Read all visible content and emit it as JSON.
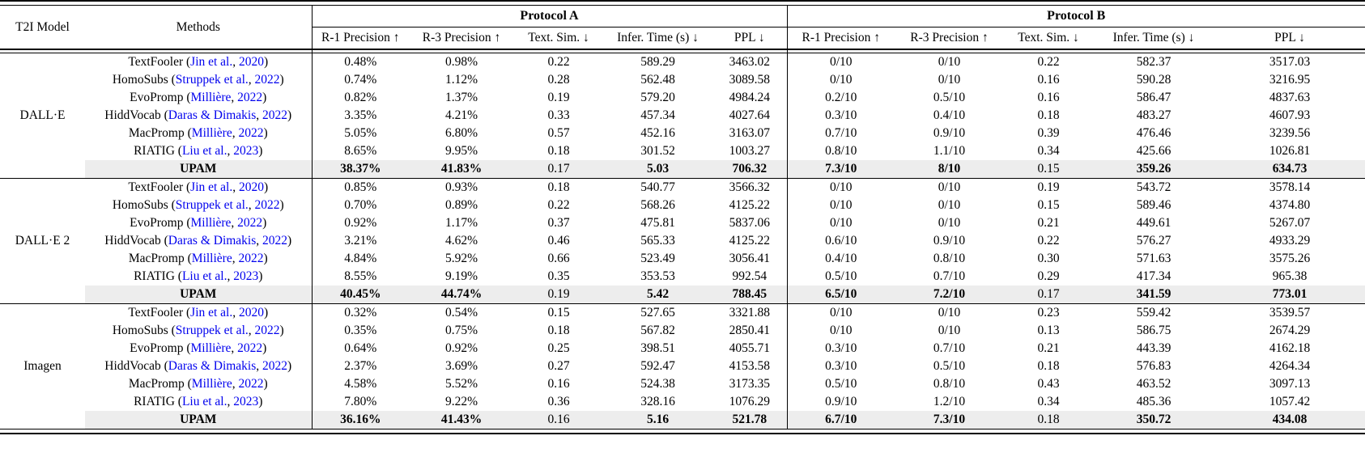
{
  "table": {
    "col_headers": {
      "t2i_model": "T2I Model",
      "methods": "Methods",
      "protocol_a": "Protocol A",
      "protocol_b": "Protocol B",
      "metrics": [
        "R-1 Precision ↑",
        "R-3 Precision ↑",
        "Text. Sim. ↓",
        "Infer. Time (s) ↓",
        "PPL ↓"
      ]
    },
    "styles": {
      "link_color": "#0000EE",
      "highlight_bg": "#ededed",
      "upam_plain_cols": [
        2,
        7
      ]
    },
    "groups": [
      {
        "model": "DALL·E",
        "rows": [
          {
            "method": {
              "name": "TextFooler",
              "cite": "Jin et al.",
              "year": "2020"
            },
            "highlight": false,
            "values": [
              "0.48%",
              "0.98%",
              "0.22",
              "589.29",
              "3463.02",
              "0/10",
              "0/10",
              "0.22",
              "582.37",
              "3517.03"
            ]
          },
          {
            "method": {
              "name": "HomoSubs",
              "cite": "Struppek et al.",
              "year": "2022"
            },
            "highlight": false,
            "values": [
              "0.74%",
              "1.12%",
              "0.28",
              "562.48",
              "3089.58",
              "0/10",
              "0/10",
              "0.16",
              "590.28",
              "3216.95"
            ]
          },
          {
            "method": {
              "name": "EvoPromp",
              "cite": "Millière",
              "year": "2022"
            },
            "highlight": false,
            "values": [
              "0.82%",
              "1.37%",
              "0.19",
              "579.20",
              "4984.24",
              "0.2/10",
              "0.5/10",
              "0.16",
              "586.47",
              "4837.63"
            ]
          },
          {
            "method": {
              "name": "HiddVocab",
              "cite": "Daras & Dimakis",
              "year": "2022"
            },
            "highlight": false,
            "values": [
              "3.35%",
              "4.21%",
              "0.33",
              "457.34",
              "4027.64",
              "0.3/10",
              "0.4/10",
              "0.18",
              "483.27",
              "4607.93"
            ]
          },
          {
            "method": {
              "name": "MacPromp",
              "cite": "Millière",
              "year": "2022"
            },
            "highlight": false,
            "values": [
              "5.05%",
              "6.80%",
              "0.57",
              "452.16",
              "3163.07",
              "0.7/10",
              "0.9/10",
              "0.39",
              "476.46",
              "3239.56"
            ]
          },
          {
            "method": {
              "name": "RIATIG",
              "cite": "Liu et al.",
              "year": "2023"
            },
            "highlight": false,
            "values": [
              "8.65%",
              "9.95%",
              "0.18",
              "301.52",
              "1003.27",
              "0.8/10",
              "1.1/10",
              "0.34",
              "425.66",
              "1026.81"
            ]
          },
          {
            "method": {
              "name": "UPAM"
            },
            "highlight": true,
            "values": [
              "38.37%",
              "41.83%",
              "0.17",
              "5.03",
              "706.32",
              "7.3/10",
              "8/10",
              "0.15",
              "359.26",
              "634.73"
            ]
          }
        ]
      },
      {
        "model": "DALL·E 2",
        "rows": [
          {
            "method": {
              "name": "TextFooler",
              "cite": "Jin et al.",
              "year": "2020"
            },
            "highlight": false,
            "values": [
              "0.85%",
              "0.93%",
              "0.18",
              "540.77",
              "3566.32",
              "0/10",
              "0/10",
              "0.19",
              "543.72",
              "3578.14"
            ]
          },
          {
            "method": {
              "name": "HomoSubs",
              "cite": "Struppek et al.",
              "year": "2022"
            },
            "highlight": false,
            "values": [
              "0.70%",
              "0.89%",
              "0.22",
              "568.26",
              "4125.22",
              "0/10",
              "0/10",
              "0.15",
              "589.46",
              "4374.80"
            ]
          },
          {
            "method": {
              "name": "EvoPromp",
              "cite": "Millière",
              "year": "2022"
            },
            "highlight": false,
            "values": [
              "0.92%",
              "1.17%",
              "0.37",
              "475.81",
              "5837.06",
              "0/10",
              "0/10",
              "0.21",
              "449.61",
              "5267.07"
            ]
          },
          {
            "method": {
              "name": "HiddVocab",
              "cite": "Daras & Dimakis",
              "year": "2022"
            },
            "highlight": false,
            "values": [
              "3.21%",
              "4.62%",
              "0.46",
              "565.33",
              "4125.22",
              "0.6/10",
              "0.9/10",
              "0.22",
              "576.27",
              "4933.29"
            ]
          },
          {
            "method": {
              "name": "MacPromp",
              "cite": "Millière",
              "year": "2022"
            },
            "highlight": false,
            "values": [
              "4.84%",
              "5.92%",
              "0.66",
              "523.49",
              "3056.41",
              "0.4/10",
              "0.8/10",
              "0.30",
              "571.63",
              "3575.26"
            ]
          },
          {
            "method": {
              "name": "RIATIG",
              "cite": "Liu et al.",
              "year": "2023"
            },
            "highlight": false,
            "values": [
              "8.55%",
              "9.19%",
              "0.35",
              "353.53",
              "992.54",
              "0.5/10",
              "0.7/10",
              "0.29",
              "417.34",
              "965.38"
            ]
          },
          {
            "method": {
              "name": "UPAM"
            },
            "highlight": true,
            "values": [
              "40.45%",
              "44.74%",
              "0.19",
              "5.42",
              "788.45",
              "6.5/10",
              "7.2/10",
              "0.17",
              "341.59",
              "773.01"
            ]
          }
        ]
      },
      {
        "model": "Imagen",
        "rows": [
          {
            "method": {
              "name": "TextFooler",
              "cite": "Jin et al.",
              "year": "2020"
            },
            "highlight": false,
            "values": [
              "0.32%",
              "0.54%",
              "0.15",
              "527.65",
              "3321.88",
              "0/10",
              "0/10",
              "0.23",
              "559.42",
              "3539.57"
            ]
          },
          {
            "method": {
              "name": "HomoSubs",
              "cite": "Struppek et al.",
              "year": "2022"
            },
            "highlight": false,
            "values": [
              "0.35%",
              "0.75%",
              "0.18",
              "567.82",
              "2850.41",
              "0/10",
              "0/10",
              "0.13",
              "586.75",
              "2674.29"
            ]
          },
          {
            "method": {
              "name": "EvoPromp",
              "cite": "Millière",
              "year": "2022"
            },
            "highlight": false,
            "values": [
              "0.64%",
              "0.92%",
              "0.25",
              "398.51",
              "4055.71",
              "0.3/10",
              "0.7/10",
              "0.21",
              "443.39",
              "4162.18"
            ]
          },
          {
            "method": {
              "name": "HiddVocab",
              "cite": "Daras & Dimakis",
              "year": "2022"
            },
            "highlight": false,
            "values": [
              "2.37%",
              "3.69%",
              "0.27",
              "592.47",
              "4153.58",
              "0.3/10",
              "0.5/10",
              "0.18",
              "576.83",
              "4264.34"
            ]
          },
          {
            "method": {
              "name": "MacPromp",
              "cite": "Millière",
              "year": "2022"
            },
            "highlight": false,
            "values": [
              "4.58%",
              "5.52%",
              "0.16",
              "524.38",
              "3173.35",
              "0.5/10",
              "0.8/10",
              "0.43",
              "463.52",
              "3097.13"
            ]
          },
          {
            "method": {
              "name": "RIATIG",
              "cite": "Liu et al.",
              "year": "2023"
            },
            "highlight": false,
            "values": [
              "7.80%",
              "9.22%",
              "0.36",
              "328.16",
              "1076.29",
              "0.9/10",
              "1.2/10",
              "0.34",
              "485.36",
              "1057.42"
            ]
          },
          {
            "method": {
              "name": "UPAM"
            },
            "highlight": true,
            "values": [
              "36.16%",
              "41.43%",
              "0.16",
              "5.16",
              "521.78",
              "6.7/10",
              "7.3/10",
              "0.18",
              "350.72",
              "434.08"
            ]
          }
        ]
      }
    ]
  }
}
